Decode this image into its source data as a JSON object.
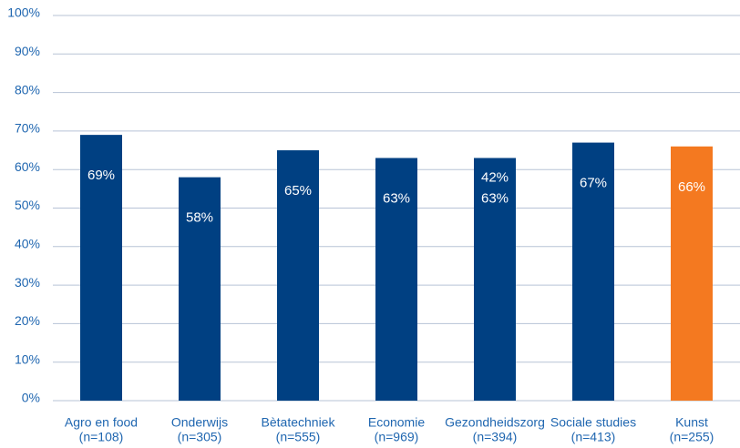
{
  "chart_data": {
    "type": "bar",
    "categories": [
      "Agro en food",
      "Onderwijs",
      "Bètatechniek",
      "Economie",
      "Gezondheidszorg",
      "Sociale studies",
      "Kunst"
    ],
    "category_notes": [
      "(n=108)",
      "(n=305)",
      "(n=555)",
      "(n=969)",
      "(n=394)",
      "(n=413)",
      "(n=255)"
    ],
    "values": [
      69,
      58,
      65,
      63,
      63,
      67,
      66
    ],
    "value_labels": [
      "69%",
      "58%",
      "65%",
      "63%",
      "63%",
      "67%",
      "66%"
    ],
    "colors": [
      "#004082",
      "#004082",
      "#004082",
      "#004082",
      "#004082",
      "#004082",
      "#f47920"
    ],
    "annotations": [
      {
        "category": 4,
        "text": "42%"
      }
    ],
    "ylim": [
      0,
      100
    ],
    "yticks": [
      {
        "value": 0,
        "label": "0%"
      },
      {
        "value": 10,
        "label": "10%"
      },
      {
        "value": 20,
        "label": "20%"
      },
      {
        "value": 30,
        "label": "30%"
      },
      {
        "value": 40,
        "label": "40%"
      },
      {
        "value": 50,
        "label": "50%"
      },
      {
        "value": 60,
        "label": "60%"
      },
      {
        "value": 70,
        "label": "70%"
      },
      {
        "value": 80,
        "label": "80%"
      },
      {
        "value": 90,
        "label": "90%"
      },
      {
        "value": 100,
        "label": "100%"
      }
    ],
    "grid": true
  }
}
